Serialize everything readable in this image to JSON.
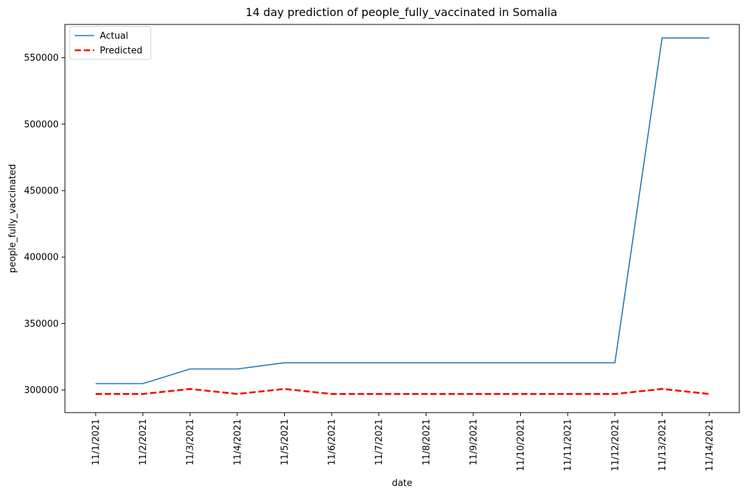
{
  "chart_data": {
    "type": "line",
    "title": "14 day prediction of people_fully_vaccinated in Somalia",
    "xlabel": "date",
    "ylabel": "people_fully_vaccinated",
    "categories": [
      "11/1/2021",
      "11/2/2021",
      "11/3/2021",
      "11/4/2021",
      "11/5/2021",
      "11/6/2021",
      "11/7/2021",
      "11/8/2021",
      "11/9/2021",
      "11/10/2021",
      "11/11/2021",
      "11/12/2021",
      "11/13/2021",
      "11/14/2021"
    ],
    "yticks": [
      300000,
      350000,
      400000,
      450000,
      500000,
      550000
    ],
    "ylim": [
      283000,
      575000
    ],
    "grid": false,
    "legend_position": "top-left",
    "series": [
      {
        "name": "Actual",
        "color": "#1f77b4",
        "style": "solid",
        "values": [
          304800,
          304800,
          315800,
          315800,
          320500,
          320500,
          320500,
          320500,
          320500,
          320500,
          320500,
          320500,
          564800,
          564800
        ]
      },
      {
        "name": "Predicted",
        "color": "#ff0000",
        "style": "dashed",
        "values": [
          297000,
          297000,
          300800,
          297000,
          300800,
          297000,
          297000,
          297000,
          297000,
          297000,
          297000,
          297000,
          300800,
          297000
        ]
      }
    ]
  }
}
